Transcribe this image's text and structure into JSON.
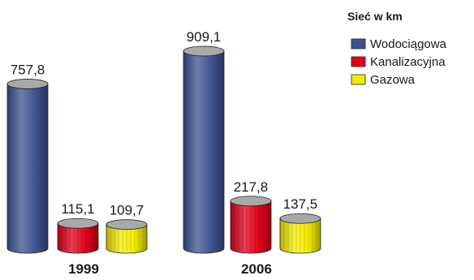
{
  "chart_data": {
    "type": "bar",
    "title": "",
    "legend_title": "Sieć w km",
    "legend_position": "top-right",
    "categories": [
      "1999",
      "2006"
    ],
    "series": [
      {
        "name": "Wodociągowa",
        "values": [
          757.8,
          909.1
        ],
        "labels": [
          "757,8",
          "909,1"
        ],
        "color": "#3c5390"
      },
      {
        "name": "Kanalizacyjna",
        "values": [
          115.1,
          217.8
        ],
        "labels": [
          "115,1",
          "217,8"
        ],
        "color": "#e3001b"
      },
      {
        "name": "Gazowa",
        "values": [
          109.7,
          137.5
        ],
        "labels": [
          "109,7",
          "137,5"
        ],
        "color": "#f5eb00"
      }
    ],
    "ylim": [
      0,
      909.1
    ],
    "grid": false,
    "style": "3d-cylinder"
  }
}
